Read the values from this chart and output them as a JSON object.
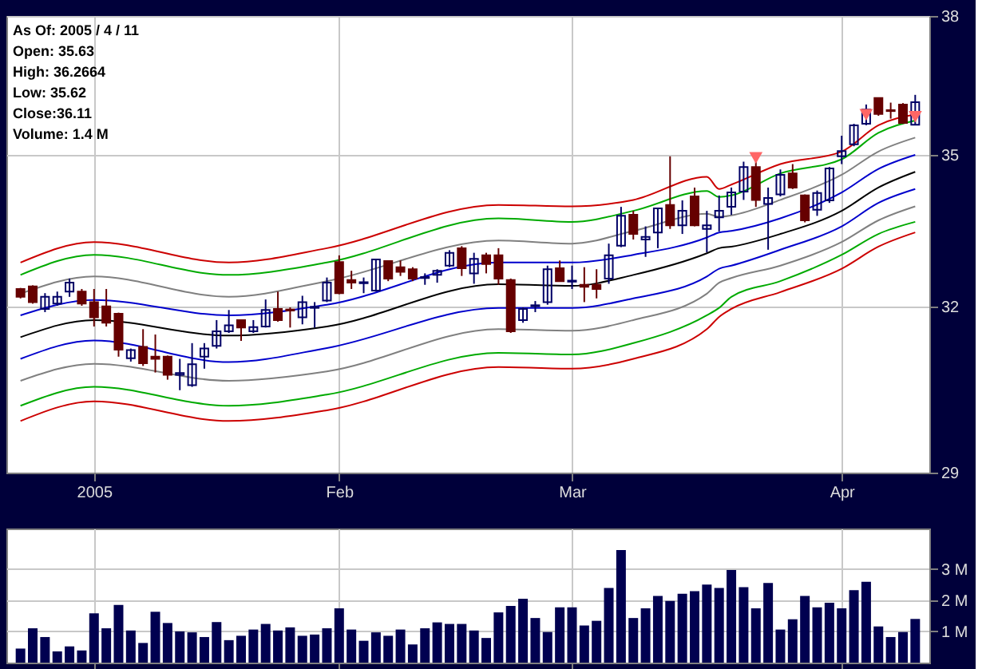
{
  "chart_data": [
    {
      "type": "candlestick",
      "log": "y",
      "grid": true,
      "colors": [
        "#660000",
        "#660000",
        "#000066",
        "#000066",
        "#000066",
        "#660000",
        "#660000",
        "#660000",
        "#660000",
        "#000066",
        "#660000",
        "#660000",
        "#660000",
        "#000066",
        "#000066",
        "#000066",
        "#000066",
        "#000066",
        "#660000",
        "#000066",
        "#000066",
        "#660000",
        "#660000",
        "#000066",
        "#000066",
        "#000066",
        "#660000",
        "#660000",
        "#000066",
        "#000066",
        "#660000",
        "#660000",
        "#660000",
        "#000066",
        "#000066",
        "#000066",
        "#660000",
        "#000066",
        "#660000",
        "#660000",
        "#660000",
        "#000066",
        "#000066",
        "#000066",
        "#660000",
        "#000066",
        "#660000",
        "#660000",
        "#000066",
        "#000066",
        "#660000",
        "#000066",
        "#000066",
        "#660000",
        "#000066",
        "#660000",
        "#000066",
        "#000066",
        "#000066",
        "#000066",
        "#660000",
        "#000066",
        "#000066",
        "#660000",
        "#660000",
        "#000066",
        "#000066",
        "#000066",
        "#000066",
        "#000066",
        "#660000",
        "#660000",
        "#660000",
        "#000066"
      ],
      "annotations": [
        "As Of: 2005 / 4 / 11",
        "Open: 35.63",
        "High: 36.2664",
        "Low: 35.62",
        "Close:36.11",
        "Volume: 1.4 M"
      ],
      "categories": [
        null,
        null,
        null,
        null,
        null,
        null,
        "2005",
        null,
        null,
        null,
        null,
        null,
        null,
        null,
        null,
        null,
        null,
        null,
        null,
        null,
        null,
        null,
        null,
        null,
        null,
        null,
        "Feb",
        null,
        null,
        null,
        null,
        null,
        null,
        null,
        null,
        null,
        null,
        null,
        null,
        null,
        null,
        null,
        null,
        null,
        null,
        "Mar",
        null,
        null,
        null,
        null,
        null,
        null,
        null,
        null,
        null,
        null,
        null,
        null,
        null,
        null,
        null,
        null,
        null,
        null,
        null,
        null,
        null,
        "Apr",
        null,
        null,
        null,
        null,
        null,
        null
      ],
      "ohlc": [
        [
          32.33,
          32.35,
          32.15,
          32.18
        ],
        [
          32.38,
          32.4,
          32.05,
          32.08
        ],
        [
          31.95,
          32.25,
          31.89,
          32.18
        ],
        [
          32.05,
          32.28,
          32.01,
          32.18
        ],
        [
          32.28,
          32.53,
          32.18,
          32.45
        ],
        [
          32.28,
          32.33,
          32.01,
          32.05
        ],
        [
          32.08,
          32.33,
          31.62,
          31.79
        ],
        [
          32.0,
          32.33,
          31.62,
          31.69
        ],
        [
          31.86,
          31.88,
          31.06,
          31.19
        ],
        [
          31.03,
          31.21,
          30.97,
          31.18
        ],
        [
          31.24,
          31.57,
          30.89,
          30.94
        ],
        [
          31.06,
          31.47,
          30.77,
          31.02
        ],
        [
          31.06,
          31.08,
          30.64,
          30.73
        ],
        [
          30.73,
          31.02,
          30.45,
          30.76
        ],
        [
          30.54,
          31.31,
          30.51,
          30.92
        ],
        [
          31.06,
          31.31,
          30.84,
          31.21
        ],
        [
          31.26,
          31.74,
          31.21,
          31.53
        ],
        [
          31.53,
          31.93,
          31.5,
          31.64
        ],
        [
          31.74,
          31.74,
          31.35,
          31.6
        ],
        [
          31.53,
          31.74,
          31.5,
          31.61
        ],
        [
          31.62,
          32.13,
          31.6,
          31.93
        ],
        [
          31.95,
          32.28,
          31.71,
          31.74
        ],
        [
          31.94,
          31.98,
          31.6,
          31.92
        ],
        [
          31.79,
          32.2,
          31.66,
          32.08
        ],
        [
          31.97,
          32.08,
          31.6,
          31.99
        ],
        [
          32.11,
          32.55,
          32.08,
          32.45
        ],
        [
          32.85,
          32.98,
          32.23,
          32.25
        ],
        [
          32.5,
          32.68,
          32.33,
          32.45
        ],
        [
          32.44,
          32.55,
          32.25,
          32.46
        ],
        [
          32.3,
          32.9,
          32.28,
          32.9
        ],
        [
          32.87,
          32.88,
          32.48,
          32.53
        ],
        [
          32.75,
          32.88,
          32.58,
          32.66
        ],
        [
          32.71,
          32.75,
          32.48,
          32.53
        ],
        [
          32.54,
          32.63,
          32.41,
          32.56
        ],
        [
          32.6,
          32.71,
          32.45,
          32.68
        ],
        [
          32.78,
          33.08,
          32.75,
          33.03
        ],
        [
          33.12,
          33.16,
          32.58,
          32.73
        ],
        [
          32.63,
          33.03,
          32.43,
          32.91
        ],
        [
          32.98,
          33.03,
          32.63,
          32.81
        ],
        [
          32.98,
          33.12,
          32.41,
          32.53
        ],
        [
          32.5,
          32.53,
          31.5,
          31.53
        ],
        [
          31.74,
          31.98,
          31.69,
          31.95
        ],
        [
          32.0,
          32.1,
          31.89,
          32.02
        ],
        [
          32.08,
          32.78,
          32.03,
          32.71
        ],
        [
          32.73,
          32.88,
          32.48,
          32.48
        ],
        [
          32.47,
          32.78,
          32.33,
          32.49
        ],
        [
          32.41,
          32.75,
          32.08,
          32.37
        ],
        [
          32.41,
          32.71,
          32.15,
          32.33
        ],
        [
          32.53,
          33.21,
          32.43,
          32.98
        ],
        [
          33.17,
          33.94,
          33.14,
          33.76
        ],
        [
          33.78,
          33.86,
          33.29,
          33.4
        ],
        [
          33.29,
          33.55,
          32.95,
          33.34
        ],
        [
          33.43,
          33.91,
          33.12,
          33.91
        ],
        [
          33.98,
          34.97,
          33.5,
          33.57
        ],
        [
          33.57,
          34.07,
          33.4,
          33.86
        ],
        [
          34.15,
          34.33,
          33.55,
          33.57
        ],
        [
          33.5,
          33.86,
          33.04,
          33.57
        ],
        [
          33.73,
          34.17,
          33.45,
          33.86
        ],
        [
          33.94,
          34.33,
          33.78,
          34.23
        ],
        [
          34.25,
          34.86,
          34.08,
          34.75
        ],
        [
          34.75,
          34.91,
          33.94,
          34.08
        ],
        [
          34.0,
          34.33,
          33.09,
          34.12
        ],
        [
          34.19,
          34.7,
          34.15,
          34.59
        ],
        [
          34.62,
          34.81,
          34.3,
          34.33
        ],
        [
          34.17,
          34.19,
          33.63,
          33.67
        ],
        [
          33.88,
          34.27,
          33.76,
          34.22
        ],
        [
          34.07,
          34.75,
          34.02,
          34.72
        ],
        [
          34.97,
          35.4,
          34.81,
          35.08
        ],
        [
          35.22,
          35.65,
          35.18,
          35.62
        ],
        [
          35.65,
          36.06,
          35.62,
          35.95
        ],
        [
          36.2,
          36.21,
          35.82,
          35.86
        ],
        [
          35.94,
          36.1,
          35.76,
          35.92
        ],
        [
          36.06,
          36.09,
          35.65,
          35.67
        ],
        [
          35.63,
          36.2664,
          35.62,
          36.11
        ]
      ],
      "series": [
        {
          "type": "line",
          "color": "#cc0000",
          "values": [
            32.84,
            null,
            null,
            null,
            null,
            null,
            33.24,
            null,
            null,
            null,
            null,
            null,
            null,
            null,
            null,
            null,
            null,
            32.84,
            null,
            null,
            null,
            null,
            null,
            null,
            null,
            33.12,
            null,
            null,
            null,
            null,
            null,
            null,
            null,
            null,
            null,
            null,
            null,
            null,
            null,
            33.98,
            null,
            null,
            null,
            null,
            null,
            33.95,
            null,
            null,
            null,
            null,
            34.08,
            null,
            null,
            null,
            null,
            null,
            34.55,
            34.3,
            34.39,
            null,
            null,
            null,
            34.81,
            null,
            null,
            null,
            null,
            35.07,
            null,
            null,
            35.62,
            null,
            null,
            35.85
          ]
        },
        {
          "type": "line",
          "color": "#00aa00",
          "values": [
            32.6,
            null,
            null,
            null,
            null,
            null,
            32.99,
            null,
            null,
            null,
            null,
            null,
            null,
            null,
            null,
            null,
            null,
            32.6,
            null,
            null,
            null,
            null,
            null,
            null,
            null,
            32.84,
            null,
            null,
            null,
            null,
            null,
            null,
            null,
            null,
            null,
            null,
            null,
            null,
            null,
            33.71,
            null,
            null,
            null,
            null,
            null,
            33.64,
            null,
            null,
            null,
            null,
            33.86,
            null,
            null,
            null,
            null,
            null,
            34.26,
            34.14,
            34.17,
            null,
            null,
            null,
            34.62,
            null,
            null,
            null,
            null,
            34.91,
            null,
            null,
            35.46,
            null,
            null,
            35.72
          ]
        },
        {
          "type": "line",
          "color": "#808080",
          "values": [
            32.24,
            null,
            null,
            null,
            null,
            null,
            32.57,
            null,
            null,
            null,
            null,
            null,
            null,
            null,
            null,
            null,
            null,
            32.18,
            null,
            null,
            null,
            null,
            null,
            null,
            null,
            32.48,
            null,
            null,
            null,
            null,
            null,
            null,
            null,
            null,
            null,
            null,
            null,
            null,
            null,
            33.27,
            null,
            null,
            null,
            null,
            null,
            33.21,
            null,
            null,
            null,
            null,
            33.46,
            null,
            null,
            null,
            null,
            null,
            33.8,
            33.74,
            33.77,
            null,
            null,
            null,
            34.08,
            null,
            null,
            null,
            null,
            34.59,
            null,
            null,
            35.07,
            null,
            null,
            35.36
          ]
        },
        {
          "type": "line",
          "color": "#0000cc",
          "values": [
            31.83,
            null,
            null,
            null,
            null,
            null,
            32.12,
            null,
            null,
            null,
            null,
            null,
            null,
            null,
            null,
            null,
            null,
            31.83,
            null,
            null,
            null,
            null,
            null,
            null,
            null,
            32.03,
            null,
            null,
            null,
            null,
            null,
            null,
            null,
            null,
            null,
            null,
            null,
            null,
            null,
            32.84,
            null,
            null,
            null,
            null,
            null,
            32.84,
            null,
            null,
            null,
            null,
            32.99,
            null,
            null,
            null,
            null,
            null,
            33.33,
            33.43,
            33.46,
            null,
            null,
            null,
            33.71,
            null,
            null,
            null,
            null,
            34.23,
            null,
            null,
            34.71,
            null,
            null,
            35.0
          ]
        },
        {
          "type": "line",
          "color": "#000000",
          "values": [
            31.42,
            null,
            null,
            null,
            null,
            null,
            31.74,
            null,
            null,
            null,
            null,
            null,
            null,
            null,
            null,
            null,
            null,
            31.45,
            null,
            null,
            null,
            null,
            null,
            null,
            null,
            31.62,
            null,
            null,
            null,
            null,
            null,
            null,
            null,
            null,
            null,
            null,
            null,
            null,
            null,
            32.42,
            null,
            null,
            null,
            null,
            null,
            32.39,
            null,
            null,
            null,
            null,
            32.6,
            null,
            null,
            null,
            null,
            null,
            33.02,
            33.12,
            33.15,
            null,
            null,
            null,
            33.4,
            null,
            null,
            null,
            null,
            33.86,
            null,
            null,
            34.33,
            null,
            null,
            34.65
          ]
        },
        {
          "type": "line",
          "color": "#0000cc",
          "values": [
            31.02,
            null,
            null,
            null,
            null,
            null,
            31.36,
            null,
            null,
            null,
            null,
            null,
            null,
            null,
            null,
            null,
            null,
            30.96,
            null,
            null,
            null,
            null,
            null,
            null,
            null,
            31.22,
            null,
            null,
            null,
            null,
            null,
            null,
            null,
            null,
            null,
            null,
            null,
            null,
            null,
            31.97,
            null,
            null,
            null,
            null,
            null,
            31.97,
            null,
            null,
            null,
            null,
            32.15,
            null,
            null,
            null,
            null,
            null,
            32.57,
            32.72,
            32.78,
            null,
            null,
            null,
            33.09,
            null,
            null,
            null,
            null,
            33.55,
            null,
            null,
            34.02,
            null,
            null,
            34.3
          ]
        },
        {
          "type": "line",
          "color": "#808080",
          "values": [
            30.62,
            null,
            null,
            null,
            null,
            null,
            30.93,
            null,
            null,
            null,
            null,
            null,
            null,
            null,
            null,
            null,
            null,
            30.62,
            null,
            null,
            null,
            null,
            null,
            null,
            null,
            30.79,
            null,
            null,
            null,
            null,
            null,
            null,
            null,
            null,
            null,
            null,
            null,
            null,
            null,
            31.57,
            null,
            null,
            null,
            null,
            null,
            31.54,
            null,
            null,
            null,
            null,
            31.74,
            null,
            null,
            null,
            null,
            null,
            32.24,
            32.45,
            32.54,
            null,
            null,
            null,
            32.78,
            null,
            null,
            null,
            null,
            33.24,
            null,
            null,
            33.67,
            null,
            null,
            33.95
          ]
        },
        {
          "type": "line",
          "color": "#00aa00",
          "values": [
            30.17,
            null,
            null,
            null,
            null,
            null,
            30.51,
            null,
            null,
            null,
            null,
            null,
            null,
            null,
            null,
            null,
            null,
            30.17,
            null,
            null,
            null,
            null,
            null,
            null,
            null,
            30.37,
            null,
            null,
            null,
            null,
            null,
            null,
            null,
            null,
            null,
            null,
            null,
            null,
            null,
            31.13,
            null,
            null,
            null,
            null,
            null,
            31.1,
            null,
            null,
            null,
            null,
            31.31,
            null,
            null,
            null,
            null,
            null,
            31.83,
            31.97,
            32.18,
            null,
            null,
            null,
            32.48,
            null,
            null,
            null,
            null,
            32.99,
            null,
            null,
            33.4,
            null,
            null,
            33.64
          ]
        },
        {
          "type": "line",
          "color": "#cc0000",
          "values": [
            29.9,
            null,
            null,
            null,
            null,
            null,
            30.25,
            null,
            null,
            null,
            null,
            null,
            null,
            null,
            null,
            null,
            null,
            29.9,
            null,
            null,
            null,
            null,
            null,
            null,
            null,
            30.09,
            null,
            null,
            null,
            null,
            null,
            null,
            null,
            null,
            null,
            null,
            null,
            null,
            null,
            30.87,
            null,
            null,
            null,
            null,
            null,
            30.84,
            null,
            null,
            null,
            null,
            31.02,
            null,
            null,
            null,
            null,
            null,
            31.57,
            31.8,
            31.95,
            null,
            null,
            null,
            32.27,
            null,
            null,
            null,
            null,
            32.72,
            null,
            null,
            33.15,
            null,
            null,
            33.43
          ]
        },
        {
          "type": "scatter",
          "marker": "triangle",
          "color": "#ff6666",
          "values": [
            null,
            null,
            null,
            null,
            null,
            null,
            null,
            null,
            null,
            null,
            null,
            null,
            null,
            null,
            null,
            null,
            null,
            null,
            null,
            null,
            null,
            null,
            null,
            null,
            null,
            null,
            null,
            null,
            null,
            null,
            null,
            null,
            null,
            null,
            null,
            null,
            null,
            null,
            null,
            null,
            null,
            null,
            null,
            null,
            null,
            null,
            null,
            null,
            null,
            null,
            null,
            null,
            null,
            null,
            null,
            null,
            null,
            null,
            null,
            null,
            34.94,
            null,
            null,
            null,
            null,
            null,
            null,
            null,
            null,
            35.84,
            null,
            null,
            null,
            35.8
          ]
        }
      ],
      "ylim": [
        29,
        38
      ],
      "yticks": [
        29,
        32,
        35,
        38
      ]
    },
    {
      "type": "bar",
      "color": "#000050",
      "grid": true,
      "tick_labels": "y",
      "categories": [
        null,
        null,
        null,
        null,
        null,
        null,
        null,
        null,
        null,
        null,
        null,
        null,
        null,
        null,
        null,
        null,
        null,
        null,
        null,
        null,
        null,
        null,
        null,
        null,
        null,
        null,
        null,
        null,
        null,
        null,
        null,
        null,
        null,
        null,
        null,
        null,
        null,
        null,
        null,
        null,
        null,
        null,
        null,
        null,
        null,
        null,
        null,
        null,
        null,
        null,
        null,
        null,
        null,
        null,
        null,
        null,
        null,
        null,
        null,
        null,
        null,
        null,
        null,
        null,
        null,
        null,
        null,
        null,
        null,
        null,
        null,
        null,
        null,
        null
      ],
      "values": [
        0.45,
        1.1,
        0.82,
        0.36,
        0.52,
        0.39,
        1.58,
        1.1,
        1.85,
        1.03,
        0.63,
        1.63,
        1.27,
        1.0,
        0.97,
        0.82,
        1.3,
        0.72,
        0.86,
        1.06,
        1.24,
        1.03,
        1.13,
        0.86,
        0.9,
        1.1,
        1.74,
        1.06,
        0.7,
        0.97,
        0.86,
        1.06,
        0.58,
        1.1,
        1.29,
        1.24,
        1.24,
        1.03,
        0.79,
        1.61,
        1.82,
        2.05,
        1.43,
        0.98,
        1.77,
        1.77,
        1.19,
        1.34,
        2.39,
        3.61,
        1.43,
        1.74,
        2.14,
        1.98,
        2.21,
        2.29,
        2.5,
        2.39,
        2.97,
        2.42,
        1.74,
        2.55,
        1.06,
        1.39,
        2.14,
        1.77,
        1.92,
        1.74,
        2.32,
        2.59,
        1.16,
        0.82,
        0.98,
        1.4
      ],
      "ylim": [
        0,
        4.3
      ],
      "yticks": [
        {
          "value": 1,
          "label": "1 M"
        },
        {
          "value": 2,
          "label": "2 M"
        },
        {
          "value": 3,
          "label": "3 M"
        }
      ]
    }
  ]
}
